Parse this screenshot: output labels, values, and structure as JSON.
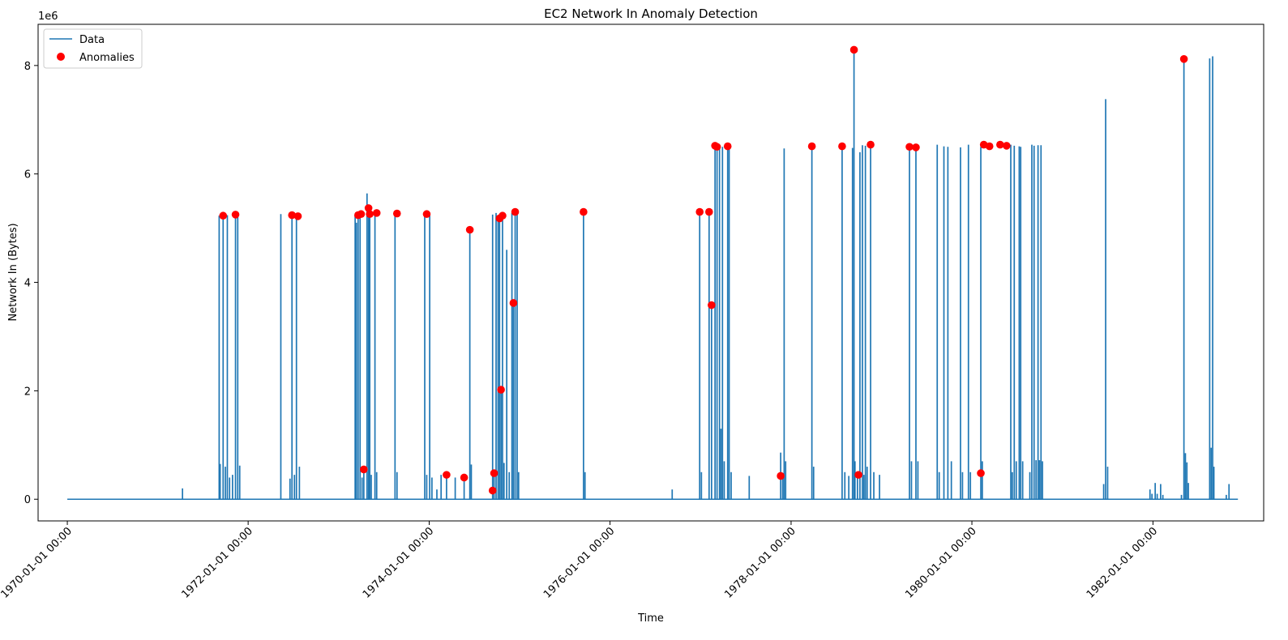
{
  "chart_data": {
    "type": "line",
    "title": "EC2 Network In Anomaly Detection",
    "xlabel": "Time",
    "ylabel": "Network In (Bytes)",
    "y_offset_label": "1e6",
    "y_scale": 1000000,
    "xlim": [
      "1969-09-05",
      "1983-03-24"
    ],
    "ylim": [
      -400000,
      8760000
    ],
    "x_ticks": [
      "1970-01-01",
      "1972-01-01",
      "1974-01-01",
      "1976-01-01",
      "1978-01-01",
      "1980-01-01",
      "1982-01-01"
    ],
    "x_tick_labels": [
      "1970-01-01 00:00",
      "1972-01-01 00:00",
      "1974-01-01 00:00",
      "1976-01-01 00:00",
      "1978-01-01 00:00",
      "1980-01-01 00:00",
      "1982-01-01 00:00"
    ],
    "y_ticks": [
      0,
      2000000,
      4000000,
      6000000,
      8000000
    ],
    "y_tick_labels": [
      "0",
      "2",
      "4",
      "6",
      "8"
    ],
    "legend": {
      "position": "upper-left",
      "entries": [
        "Data",
        "Anomalies"
      ]
    },
    "colors": {
      "data": "#1f77b4",
      "anomalies": "#ff0000"
    },
    "series": [
      {
        "name": "Data",
        "style": "line",
        "baseline": 0,
        "x_start": "1970-01-01",
        "x_end": "1982-12-10",
        "spikes": [
          [
            "1971-04-11",
            200000
          ],
          [
            "1971-09-06",
            5230000
          ],
          [
            "1971-09-10",
            650000
          ],
          [
            "1971-09-22",
            5250000
          ],
          [
            "1971-10-01",
            600000
          ],
          [
            "1971-10-09",
            5240000
          ],
          [
            "1971-10-18",
            400000
          ],
          [
            "1971-10-30",
            450000
          ],
          [
            "1971-11-11",
            5260000
          ],
          [
            "1971-11-20",
            5220000
          ],
          [
            "1971-11-28",
            620000
          ],
          [
            "1972-05-12",
            5260000
          ],
          [
            "1972-06-18",
            380000
          ],
          [
            "1972-06-26",
            5240000
          ],
          [
            "1972-07-06",
            450000
          ],
          [
            "1972-07-14",
            5230000
          ],
          [
            "1972-07-26",
            600000
          ],
          [
            "1973-03-08",
            5240000
          ],
          [
            "1973-03-13",
            5100000
          ],
          [
            "1973-03-20",
            5260000
          ],
          [
            "1973-03-28",
            5270000
          ],
          [
            "1973-04-05",
            400000
          ],
          [
            "1973-04-12",
            550000
          ],
          [
            "1973-04-25",
            5640000
          ],
          [
            "1973-05-01",
            5370000
          ],
          [
            "1973-05-06",
            5260000
          ],
          [
            "1973-05-12",
            450000
          ],
          [
            "1973-05-27",
            5280000
          ],
          [
            "1973-06-03",
            500000
          ],
          [
            "1973-08-16",
            5270000
          ],
          [
            "1973-08-24",
            500000
          ],
          [
            "1973-12-14",
            5270000
          ],
          [
            "1973-12-22",
            450000
          ],
          [
            "1974-01-03",
            5260000
          ],
          [
            "1974-01-12",
            400000
          ],
          [
            "1974-02-01",
            180000
          ],
          [
            "1974-02-18",
            450000
          ],
          [
            "1974-03-12",
            460000
          ],
          [
            "1974-04-16",
            400000
          ],
          [
            "1974-05-22",
            400000
          ],
          [
            "1974-06-14",
            4970000
          ],
          [
            "1974-06-20",
            640000
          ],
          [
            "1974-09-14",
            5250000
          ],
          [
            "1974-09-20",
            500000
          ],
          [
            "1974-09-28",
            5280000
          ],
          [
            "1974-10-06",
            5200000
          ],
          [
            "1974-10-12",
            5250000
          ],
          [
            "1974-10-18",
            2020000
          ],
          [
            "1974-10-24",
            5200000
          ],
          [
            "1974-10-30",
            670000
          ],
          [
            "1974-11-10",
            4600000
          ],
          [
            "1974-11-20",
            500000
          ],
          [
            "1974-12-01",
            5280000
          ],
          [
            "1974-12-07",
            3620000
          ],
          [
            "1974-12-14",
            5300000
          ],
          [
            "1974-12-22",
            5280000
          ],
          [
            "1974-12-28",
            500000
          ],
          [
            "1975-09-16",
            5300000
          ],
          [
            "1975-09-22",
            500000
          ],
          [
            "1976-09-08",
            180000
          ],
          [
            "1976-12-28",
            5300000
          ],
          [
            "1977-01-04",
            500000
          ],
          [
            "1977-02-04",
            5300000
          ],
          [
            "1977-02-14",
            3580000
          ],
          [
            "1977-02-28",
            6520000
          ],
          [
            "1977-03-08",
            6500000
          ],
          [
            "1977-03-18",
            6510000
          ],
          [
            "1977-03-24",
            1300000
          ],
          [
            "1977-03-30",
            6500000
          ],
          [
            "1977-04-06",
            700000
          ],
          [
            "1977-04-20",
            6520000
          ],
          [
            "1977-04-26",
            6510000
          ],
          [
            "1977-05-04",
            500000
          ],
          [
            "1977-07-16",
            430000
          ],
          [
            "1977-11-20",
            860000
          ],
          [
            "1977-11-28",
            430000
          ],
          [
            "1977-12-04",
            6470000
          ],
          [
            "1977-12-10",
            700000
          ],
          [
            "1978-03-26",
            6510000
          ],
          [
            "1978-04-02",
            600000
          ],
          [
            "1978-07-26",
            6510000
          ],
          [
            "1978-08-06",
            500000
          ],
          [
            "1978-08-22",
            430000
          ],
          [
            "1978-09-06",
            6480000
          ],
          [
            "1978-09-12",
            8290000
          ],
          [
            "1978-09-16",
            700000
          ],
          [
            "1978-09-26",
            450000
          ],
          [
            "1978-10-06",
            6400000
          ],
          [
            "1978-10-16",
            6530000
          ],
          [
            "1978-10-22",
            450000
          ],
          [
            "1978-10-28",
            6520000
          ],
          [
            "1978-11-04",
            600000
          ],
          [
            "1978-11-18",
            6540000
          ],
          [
            "1978-12-01",
            500000
          ],
          [
            "1978-12-24",
            450000
          ],
          [
            "1979-04-24",
            6500000
          ],
          [
            "1979-05-02",
            700000
          ],
          [
            "1979-05-20",
            6490000
          ],
          [
            "1979-05-28",
            700000
          ],
          [
            "1979-08-14",
            6540000
          ],
          [
            "1979-08-22",
            500000
          ],
          [
            "1979-09-10",
            6510000
          ],
          [
            "1979-09-26",
            6500000
          ],
          [
            "1979-10-10",
            700000
          ],
          [
            "1979-11-16",
            6490000
          ],
          [
            "1979-11-24",
            500000
          ],
          [
            "1979-12-18",
            6540000
          ],
          [
            "1979-12-26",
            500000
          ],
          [
            "1980-02-06",
            6500000
          ],
          [
            "1980-02-12",
            700000
          ],
          [
            "1980-06-06",
            6540000
          ],
          [
            "1980-06-12",
            500000
          ],
          [
            "1980-06-20",
            6520000
          ],
          [
            "1980-06-28",
            700000
          ],
          [
            "1980-07-10",
            6510000
          ],
          [
            "1980-07-16",
            6500000
          ],
          [
            "1980-07-24",
            700000
          ],
          [
            "1980-08-22",
            500000
          ],
          [
            "1980-08-30",
            6540000
          ],
          [
            "1980-09-08",
            6520000
          ],
          [
            "1980-09-16",
            720000
          ],
          [
            "1980-09-24",
            6530000
          ],
          [
            "1980-09-30",
            720000
          ],
          [
            "1980-10-06",
            6530000
          ],
          [
            "1980-10-12",
            700000
          ],
          [
            "1981-06-16",
            280000
          ],
          [
            "1981-06-24",
            7380000
          ],
          [
            "1981-07-02",
            600000
          ],
          [
            "1981-12-20",
            180000
          ],
          [
            "1981-12-28",
            100000
          ],
          [
            "1982-01-10",
            300000
          ],
          [
            "1982-01-18",
            100000
          ],
          [
            "1982-02-01",
            280000
          ],
          [
            "1982-02-10",
            80000
          ],
          [
            "1982-04-26",
            80000
          ],
          [
            "1982-05-06",
            8120000
          ],
          [
            "1982-05-12",
            850000
          ],
          [
            "1982-05-18",
            680000
          ],
          [
            "1982-05-24",
            300000
          ],
          [
            "1982-08-18",
            8130000
          ],
          [
            "1982-08-24",
            950000
          ],
          [
            "1982-08-30",
            8170000
          ],
          [
            "1982-09-04",
            600000
          ],
          [
            "1982-10-24",
            80000
          ],
          [
            "1982-11-04",
            280000
          ]
        ]
      },
      {
        "name": "Anomalies",
        "style": "markers",
        "points": [
          [
            "1971-09-22",
            5230000
          ],
          [
            "1971-11-11",
            5250000
          ],
          [
            "1972-06-26",
            5240000
          ],
          [
            "1972-07-20",
            5220000
          ],
          [
            "1973-03-20",
            5240000
          ],
          [
            "1973-04-01",
            5260000
          ],
          [
            "1973-04-12",
            550000
          ],
          [
            "1973-05-01",
            5370000
          ],
          [
            "1973-05-06",
            5260000
          ],
          [
            "1973-06-03",
            5280000
          ],
          [
            "1973-08-24",
            5270000
          ],
          [
            "1973-12-22",
            5260000
          ],
          [
            "1974-03-12",
            450000
          ],
          [
            "1974-05-22",
            400000
          ],
          [
            "1974-06-14",
            4970000
          ],
          [
            "1974-09-14",
            160000
          ],
          [
            "1974-09-20",
            480000
          ],
          [
            "1974-10-12",
            5180000
          ],
          [
            "1974-10-18",
            2020000
          ],
          [
            "1974-10-24",
            5230000
          ],
          [
            "1974-12-07",
            3620000
          ],
          [
            "1974-12-14",
            5300000
          ],
          [
            "1975-09-16",
            5300000
          ],
          [
            "1976-12-28",
            5300000
          ],
          [
            "1977-02-04",
            5300000
          ],
          [
            "1977-02-14",
            3580000
          ],
          [
            "1977-02-28",
            6520000
          ],
          [
            "1977-03-08",
            6500000
          ],
          [
            "1977-04-20",
            6510000
          ],
          [
            "1977-11-20",
            430000
          ],
          [
            "1978-03-26",
            6510000
          ],
          [
            "1978-07-26",
            6510000
          ],
          [
            "1978-09-12",
            8290000
          ],
          [
            "1978-09-30",
            450000
          ],
          [
            "1978-11-18",
            6540000
          ],
          [
            "1979-04-24",
            6500000
          ],
          [
            "1979-05-20",
            6490000
          ],
          [
            "1980-02-06",
            480000
          ],
          [
            "1980-02-18",
            6540000
          ],
          [
            "1980-03-12",
            6510000
          ],
          [
            "1980-04-24",
            6540000
          ],
          [
            "1980-05-20",
            6520000
          ],
          [
            "1982-05-06",
            8120000
          ]
        ]
      }
    ]
  }
}
